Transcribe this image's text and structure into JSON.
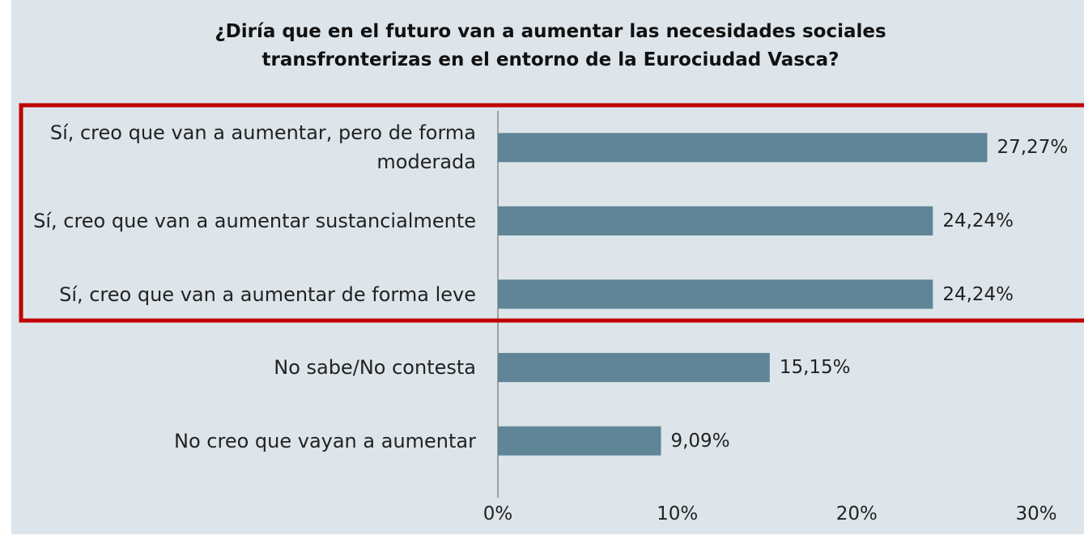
{
  "chart_data": {
    "type": "bar",
    "orientation": "horizontal",
    "title": "¿Diría que en el futuro van a aumentar las necesidades sociales transfronterizas en el entorno de la Eurociudad Vasca?",
    "categories": [
      "Sí, creo que van a aumentar, pero de forma moderada",
      "Sí, creo que van a aumentar sustancialmente",
      "Sí, creo que van a aumentar de forma leve",
      "No sabe/No contesta",
      "No creo que vayan a aumentar"
    ],
    "values": [
      27.27,
      24.24,
      24.24,
      15.15,
      9.09
    ],
    "value_labels": [
      "27,27%",
      "24,24%",
      "24,24%",
      "15,15%",
      "9,09%"
    ],
    "color": "#5f8597",
    "xlim": [
      0,
      30
    ],
    "xticks": [
      {
        "value": 0,
        "label": "0%"
      },
      {
        "value": 10,
        "label": "10%"
      },
      {
        "value": 20,
        "label": "20%"
      },
      {
        "value": 30,
        "label": "30%"
      }
    ],
    "grid": false
  }
}
